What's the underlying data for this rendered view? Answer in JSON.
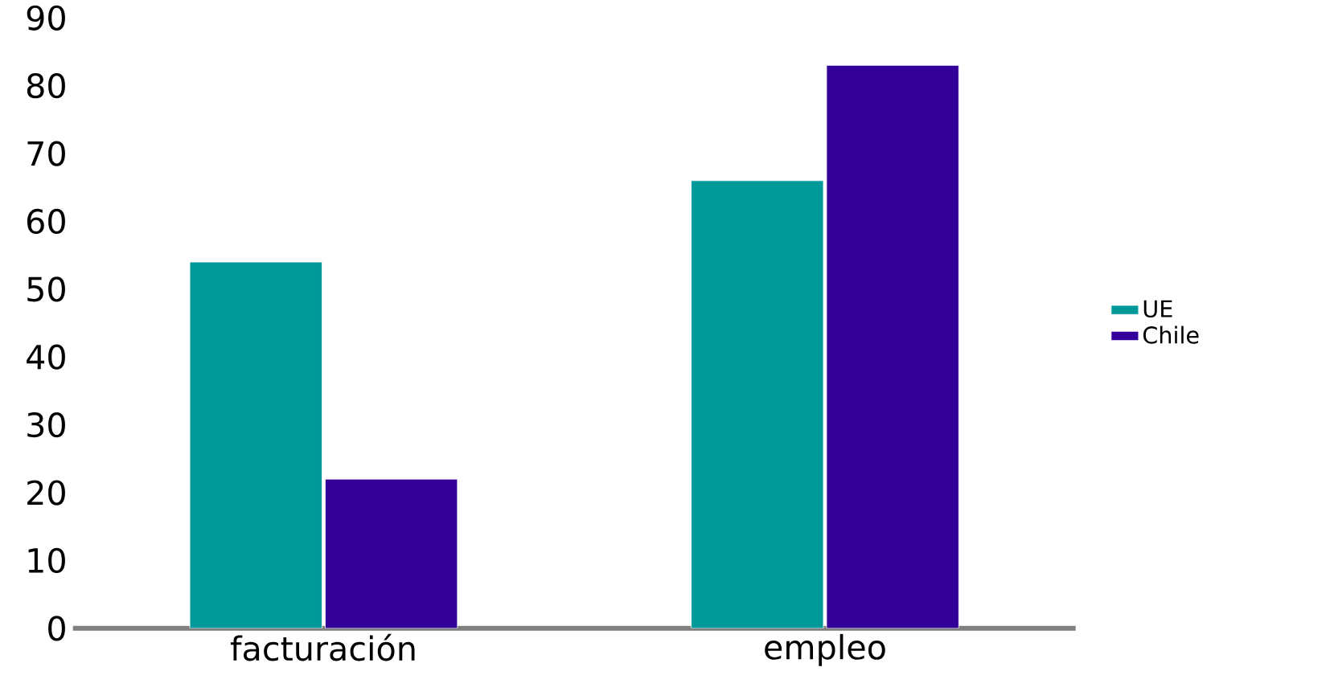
{
  "chart_data": {
    "type": "bar",
    "categories": [
      "facturación",
      "empleo"
    ],
    "series": [
      {
        "name": "UE",
        "color": "#009999",
        "values": [
          54,
          66
        ]
      },
      {
        "name": "Chile",
        "color": "#330099",
        "values": [
          22,
          83
        ]
      }
    ],
    "ylim": [
      0,
      90
    ],
    "yticks": [
      0,
      10,
      20,
      30,
      40,
      50,
      60,
      70,
      80,
      90
    ],
    "grid": false,
    "legend": "right"
  }
}
